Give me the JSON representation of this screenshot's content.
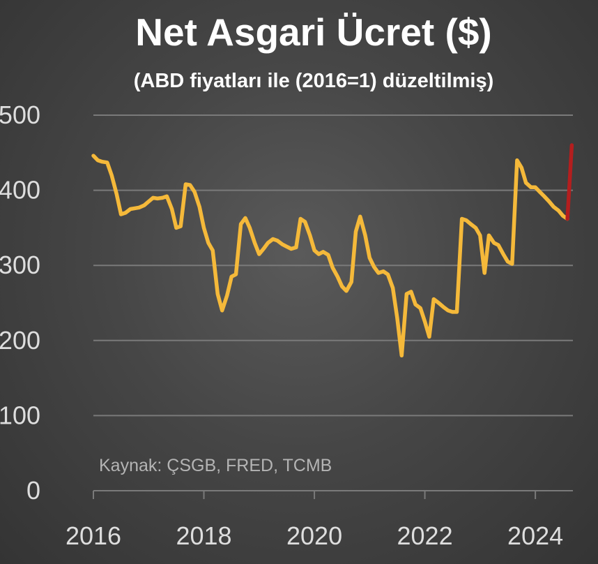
{
  "chart_data": {
    "type": "line",
    "title": "Net Asgari Ücret ($)",
    "subtitle": "(ABD fiyatları ile (2016=1) düzeltilmiş)",
    "source": "Kaynak: ÇSGB, FRED, TCMB",
    "xlabel": "",
    "ylabel": "",
    "xlim": [
      2016,
      2024.68
    ],
    "ylim": [
      0,
      500
    ],
    "x_ticks": [
      2016,
      2018,
      2020,
      2022,
      2024
    ],
    "x_tick_labels": [
      "2016",
      "2018",
      "2020",
      "2022",
      "2024"
    ],
    "y_ticks": [
      0,
      100,
      200,
      300,
      400,
      500
    ],
    "y_tick_labels": [
      "0",
      "100",
      "200",
      "300",
      "400",
      "500"
    ],
    "grid": "horizontal",
    "colors": {
      "background": "#464646",
      "grid": "#7a7a7a",
      "main_line": "#f5b93a",
      "latest_segment": "#b41e1e",
      "title": "#ffffff",
      "ticks": "#dedede",
      "source": "#b4b4b4"
    },
    "series": [
      {
        "color": "#f5b93a",
        "x": [
          2016.0,
          2016.08,
          2016.16,
          2016.25,
          2016.33,
          2016.42,
          2016.5,
          2016.58,
          2016.67,
          2016.75,
          2016.83,
          2016.92,
          2017.0,
          2017.08,
          2017.16,
          2017.25,
          2017.33,
          2017.42,
          2017.5,
          2017.58,
          2017.67,
          2017.75,
          2017.83,
          2017.92,
          2018.0,
          2018.08,
          2018.16,
          2018.25,
          2018.33,
          2018.42,
          2018.5,
          2018.58,
          2018.67,
          2018.75,
          2018.83,
          2018.92,
          2019.0,
          2019.08,
          2019.16,
          2019.25,
          2019.33,
          2019.42,
          2019.5,
          2019.58,
          2019.67,
          2019.75,
          2019.83,
          2019.92,
          2020.0,
          2020.08,
          2020.16,
          2020.25,
          2020.33,
          2020.42,
          2020.5,
          2020.58,
          2020.67,
          2020.75,
          2020.83,
          2020.92,
          2021.0,
          2021.08,
          2021.16,
          2021.25,
          2021.33,
          2021.42,
          2021.5,
          2021.58,
          2021.67,
          2021.75,
          2021.83,
          2021.92,
          2022.0,
          2022.08,
          2022.16,
          2022.25,
          2022.33,
          2022.42,
          2022.5,
          2022.58,
          2022.67,
          2022.75,
          2022.83,
          2022.92,
          2023.0,
          2023.08,
          2023.16,
          2023.25,
          2023.33,
          2023.42,
          2023.5,
          2023.58,
          2023.67,
          2023.75,
          2023.83,
          2023.92,
          2024.0,
          2024.08,
          2024.16,
          2024.25,
          2024.33,
          2024.42,
          2024.5,
          2024.58
        ],
        "values": [
          446,
          440,
          438,
          437,
          420,
          395,
          368,
          370,
          375,
          376,
          377,
          380,
          385,
          390,
          389,
          390,
          392,
          375,
          350,
          352,
          408,
          407,
          398,
          378,
          350,
          330,
          320,
          262,
          240,
          260,
          285,
          288,
          355,
          363,
          350,
          330,
          315,
          322,
          330,
          335,
          333,
          328,
          325,
          322,
          324,
          362,
          358,
          340,
          320,
          315,
          318,
          314,
          297,
          285,
          272,
          266,
          278,
          345,
          365,
          340,
          310,
          298,
          290,
          292,
          288,
          270,
          230,
          180,
          262,
          265,
          248,
          243,
          225,
          205,
          255,
          250,
          245,
          240,
          238,
          238,
          362,
          360,
          355,
          350,
          340,
          290,
          340,
          330,
          327,
          315,
          305,
          302,
          440,
          430,
          410,
          404,
          404,
          398,
          392,
          385,
          378,
          373,
          366,
          362
        ]
      },
      {
        "color": "#b41e1e",
        "x": [
          2024.58,
          2024.62,
          2024.66
        ],
        "values": [
          362,
          410,
          460
        ]
      }
    ]
  }
}
